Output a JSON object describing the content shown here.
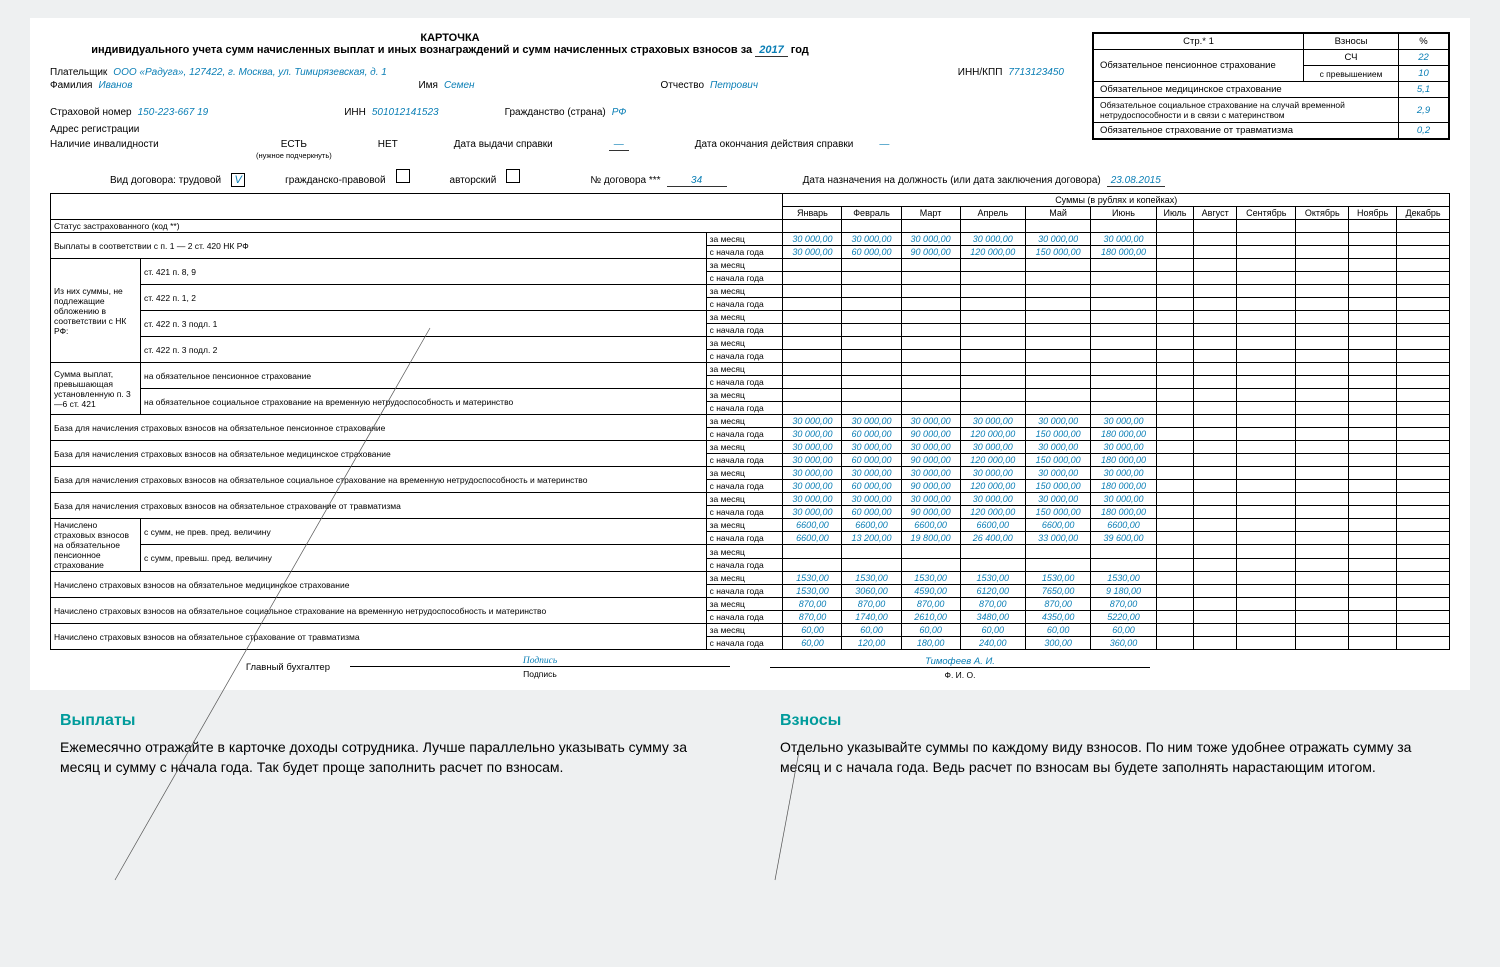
{
  "title": "КАРТОЧКА",
  "subtitle_pre": "индивидуального учета сумм начисленных выплат и иных вознаграждений и сумм начисленных страховых взносов за",
  "year": "2017",
  "subtitle_post": "год",
  "payer_label": "Плательщик",
  "payer": "ООО «Радуга», 127422, г. Москва, ул. Тимирязевская, д. 1",
  "inn_kpp_label": "ИНН/КПП",
  "inn_kpp": "7713123450",
  "surname_label": "Фамилия",
  "surname": "Иванов",
  "name_label": "Имя",
  "name": "Семен",
  "patronymic_label": "Отчество",
  "patronymic": "Петрович",
  "ins_num_label": "Страховой номер",
  "ins_num": "150-223-667 19",
  "inn_label": "ИНН",
  "inn": "501012141523",
  "citizen_label": "Гражданство (страна)",
  "citizen": "РФ",
  "address_label": "Адрес регистрации",
  "disability_label": "Наличие инвалидности",
  "yes": "ЕСТЬ",
  "no": "НЕТ",
  "underline_note": "(нужное подчеркнуть)",
  "cert_date_label": "Дата выдачи справки",
  "cert_end_label": "Дата окончания действия справки",
  "contract_type_label": "Вид договора: трудовой",
  "contract_civil": "гражданско-правовой",
  "contract_author": "авторский",
  "contract_num_label": "№ договора ***",
  "contract_num": "34",
  "appoint_date_label": "Дата назначения на должность (или дата заключения договора)",
  "appoint_date": "23.08.2015",
  "check": "V",
  "dash": "—",
  "box": {
    "page": "Стр.* 1",
    "h1": "Взносы",
    "h2": "%",
    "r1a": "Обязательное пенсионное страхование",
    "r1b": "СЧ",
    "r1pct": "22",
    "r2b": "с превышением",
    "r2pct": "10",
    "r3a": "Обязательное медицинское страхование",
    "r3pct": "5,1",
    "r4a": "Обязательное социальное страхование на случай временной нетрудоспособности и в связи с материнством",
    "r4pct": "2,9",
    "r5a": "Обязательное страхование от травматизма",
    "r5pct": "0,2"
  },
  "months": [
    "Январь",
    "Февраль",
    "Март",
    "Апрель",
    "Май",
    "Июнь",
    "Июль",
    "Август",
    "Сентябрь",
    "Октябрь",
    "Ноябрь",
    "Декабрь"
  ],
  "sums_header": "Суммы (в рублях и копейках)",
  "status_label": "Статус застрахованного (код **)",
  "pay_label": "Выплаты в соответствии с п. 1 — 2 ст. 420 НК РФ",
  "exclude_label": "Из них суммы, не подлежащие обложению в соответствии с НК РФ:",
  "excl1": "ст. 421 п. 8, 9",
  "excl2": "ст. 422 п. 1, 2",
  "excl3": "ст. 422 п. 3 подл. 1",
  "excl4": "ст. 422 п. 3 подл. 2",
  "excess_label": "Сумма выплат, превышающая установленную п. 3—6 ст. 421",
  "excess1": "на обязательное пенсионное страхование",
  "excess2": "на обязательное социальное страхование на временную нетрудоспособность и материнство",
  "base1": "База для начисления страховых взносов на обязательное пенсионное страхование",
  "base2": "База для начисления страховых взносов на обязательное медицинское страхование",
  "base3": "База для начисления страховых взносов на обязательное социальное страхование на временную нетрудоспособность и материнство",
  "base4": "База для начисления страховых взносов на обязательное страхование от травматизма",
  "calc1": "Начислено страховых взносов на обязательное пенсионное страхование",
  "calc1a": "с сумм, не прев. пред. величину",
  "calc1b": "с сумм, превыш. пред. величину",
  "calc2": "Начислено страховых взносов на обязательное медицинское страхование",
  "calc3": "Начислено страховых взносов на обязательное социальное страхование на временную нетрудоспособность и материнство",
  "calc4": "Начислено страховых взносов на обязательное страхование от травматизма",
  "per_month": "за месяц",
  "from_start": "с начала года",
  "v30k": [
    "30 000,00",
    "30 000,00",
    "30 000,00",
    "30 000,00",
    "30 000,00",
    "30 000,00"
  ],
  "v30k_cum": [
    "30 000,00",
    "60 000,00",
    "90 000,00",
    "120 000,00",
    "150 000,00",
    "180 000,00"
  ],
  "v6600": [
    "6600,00",
    "6600,00",
    "6600,00",
    "6600,00",
    "6600,00",
    "6600,00"
  ],
  "v6600_cum": [
    "6600,00",
    "13 200,00",
    "19 800,00",
    "26 400,00",
    "33 000,00",
    "39 600,00"
  ],
  "v1530": [
    "1530,00",
    "1530,00",
    "1530,00",
    "1530,00",
    "1530,00",
    "1530,00"
  ],
  "v1530_cum": [
    "1530,00",
    "3060,00",
    "4590,00",
    "6120,00",
    "7650,00",
    "9 180,00"
  ],
  "v870": [
    "870,00",
    "870,00",
    "870,00",
    "870,00",
    "870,00",
    "870,00"
  ],
  "v870_cum": [
    "870,00",
    "1740,00",
    "2610,00",
    "3480,00",
    "4350,00",
    "5220,00"
  ],
  "v60": [
    "60,00",
    "60,00",
    "60,00",
    "60,00",
    "60,00",
    "60,00"
  ],
  "v60_cum": [
    "60,00",
    "120,00",
    "180,00",
    "240,00",
    "300,00",
    "360,00"
  ],
  "chief_acc": "Главный бухгалтер",
  "signature_img": "Подпись",
  "signature_label": "Подпись",
  "fio_val": "Тимофеев А. И.",
  "fio_label": "Ф. И. О.",
  "callout1_title": "Выплаты",
  "callout1_text": "Ежемесячно отражайте в карточке доходы сотрудника. Лучше параллельно указывать сумму за месяц и сумму с начала года. Так будет проще заполнить расчет по взносам.",
  "callout2_title": "Взносы",
  "callout2_text": "Отдельно указывайте суммы по каждому виду взносов. По ним тоже удобнее отражать сумму за месяц и с начала года. Ведь расчет по взносам вы будете заполнять нарастающим итогом."
}
